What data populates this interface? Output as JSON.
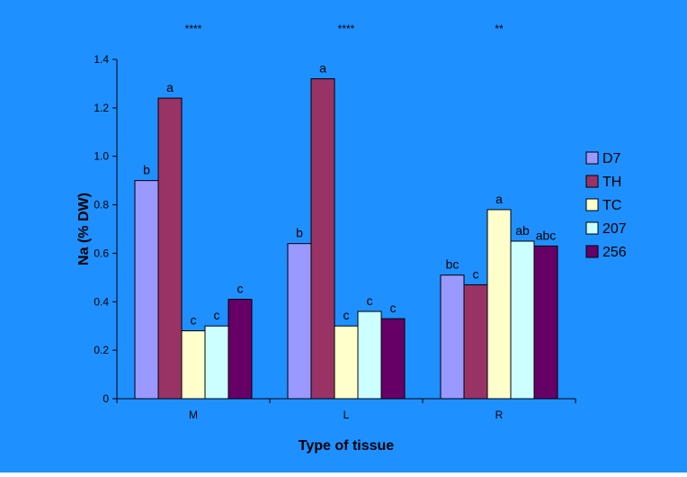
{
  "chart_data": {
    "type": "bar",
    "categories": [
      "M",
      "L",
      "R"
    ],
    "series": [
      {
        "name": "D7",
        "values": [
          0.9,
          0.64,
          0.51
        ],
        "letters": [
          "b",
          "b",
          "bc"
        ]
      },
      {
        "name": "TH",
        "values": [
          1.24,
          1.32,
          0.47
        ],
        "letters": [
          "a",
          "a",
          "c"
        ]
      },
      {
        "name": "TC",
        "values": [
          0.28,
          0.3,
          0.78
        ],
        "letters": [
          "c",
          "c",
          "a"
        ]
      },
      {
        "name": "207",
        "values": [
          0.3,
          0.36,
          0.65
        ],
        "letters": [
          "c",
          "c",
          "ab"
        ]
      },
      {
        "name": "256",
        "values": [
          0.41,
          0.33,
          0.63
        ],
        "letters": [
          "c",
          "c",
          "abc"
        ]
      }
    ],
    "significance": [
      "****",
      "****",
      "**"
    ],
    "xlabel": "Type of tissue",
    "ylabel": "Na (% DW)",
    "ylim": [
      0,
      1.4
    ],
    "yticks": [
      "0",
      "0.2",
      "0.4",
      "0.6",
      "0.8",
      "1.0",
      "1.2",
      "1.4"
    ],
    "legend_position": "right",
    "grid": false,
    "colors": {
      "background": "#1E90FF",
      "plot_area": "#1E90FF",
      "series": [
        "#9999FF",
        "#993366",
        "#FFFFCC",
        "#CCFFFF",
        "#660066"
      ],
      "text": "#000000"
    }
  }
}
